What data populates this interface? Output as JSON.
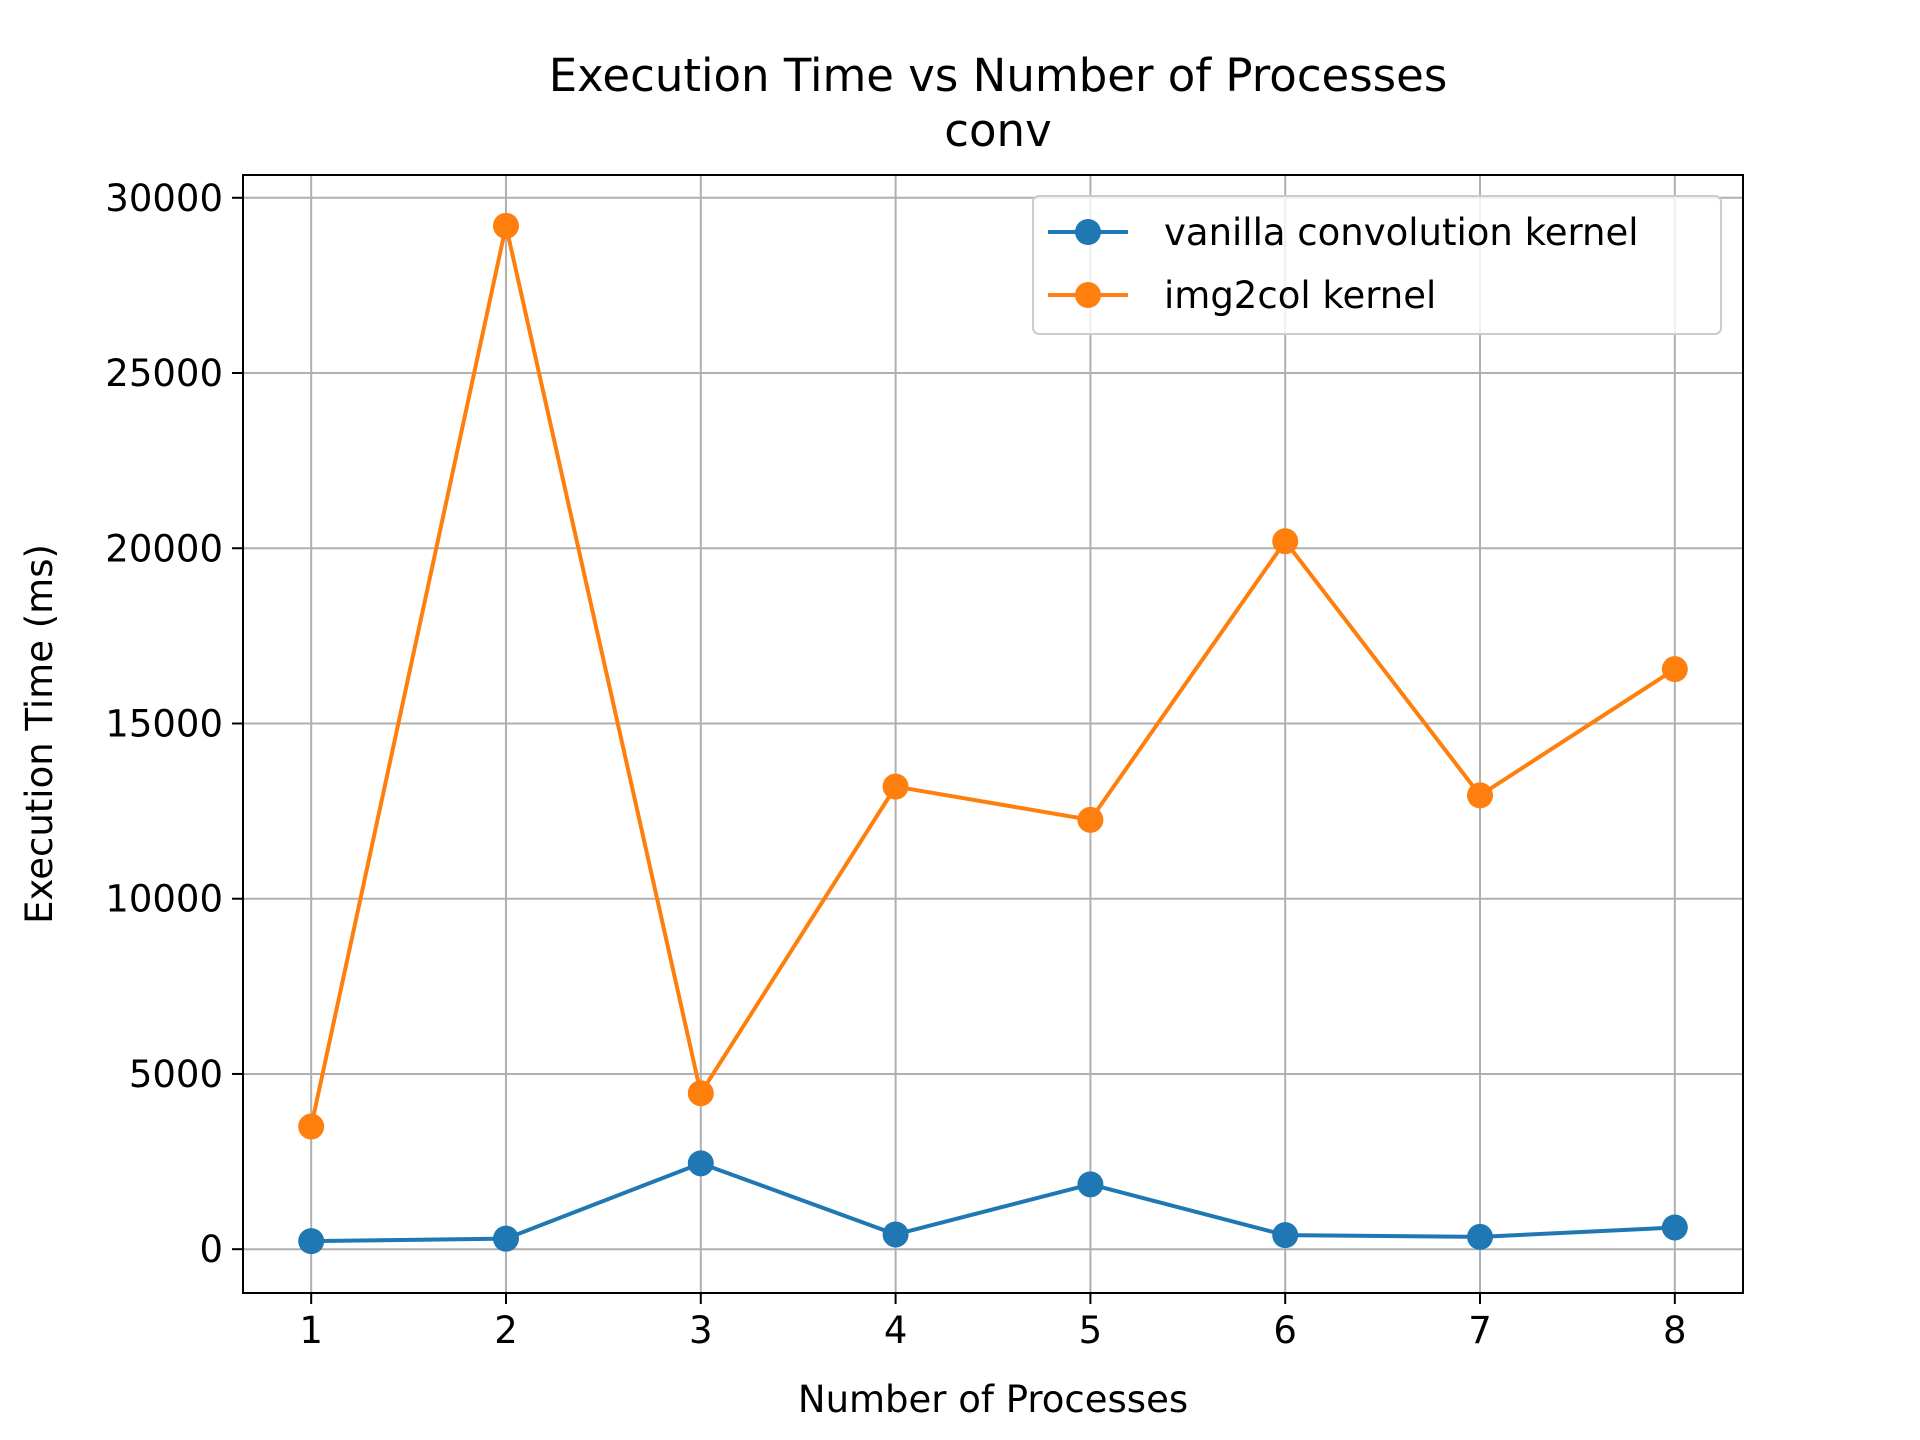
{
  "chart_data": {
    "type": "line",
    "title": "Execution Time vs Number of Processes",
    "subtitle": "conv",
    "xlabel": "Number of Processes",
    "ylabel": "Execution Time (ms)",
    "x": [
      1,
      2,
      3,
      4,
      5,
      6,
      7,
      8
    ],
    "xticks": [
      "1",
      "2",
      "3",
      "4",
      "5",
      "6",
      "7",
      "8"
    ],
    "xlim": [
      0.65,
      8.35
    ],
    "ylim": [
      -1250,
      30650
    ],
    "yticks": [
      0,
      5000,
      10000,
      15000,
      20000,
      25000,
      30000
    ],
    "ytick_labels": [
      "0",
      "5000",
      "10000",
      "15000",
      "20000",
      "25000",
      "30000"
    ],
    "grid": true,
    "legend_position": "top-right",
    "series": [
      {
        "name": "vanilla convolution kernel",
        "color": "#1f77b4",
        "marker": "circle",
        "values": [
          230,
          300,
          2450,
          420,
          1850,
          400,
          350,
          620
        ]
      },
      {
        "name": "img2col kernel",
        "color": "#ff7f0e",
        "marker": "circle",
        "values": [
          3500,
          29200,
          4450,
          13200,
          12250,
          20200,
          12950,
          16550
        ]
      }
    ]
  }
}
